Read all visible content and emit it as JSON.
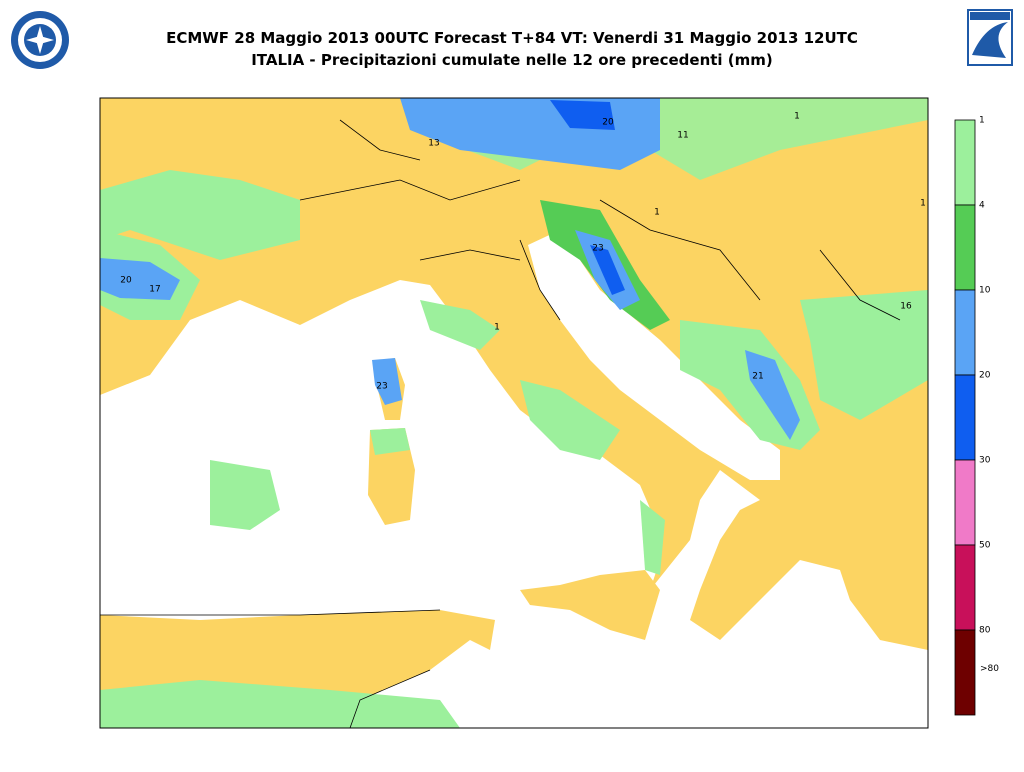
{
  "header": {
    "title": "ECMWF 28 Maggio 2013 00UTC Forecast T+84 VT: Venerdi 31 Maggio 2013 12UTC",
    "subtitle": "ITALIA - Precipitazioni cumulate nelle 12 ore precedenti (mm)"
  },
  "colorbar": {
    "labels": [
      "1",
      "4",
      "10",
      "20",
      "30",
      "50",
      "80",
      ">80"
    ],
    "colors": [
      "#9cf09c",
      "#55cc55",
      "#5aa4f5",
      "#0f5ef0",
      "#f07ac8",
      "#c8105a",
      "#6e0000"
    ]
  },
  "map": {
    "labels": [
      "20",
      "17",
      "13",
      "20",
      "11",
      "1",
      "1",
      "1",
      "23",
      "16",
      "1",
      "23",
      "21"
    ]
  }
}
